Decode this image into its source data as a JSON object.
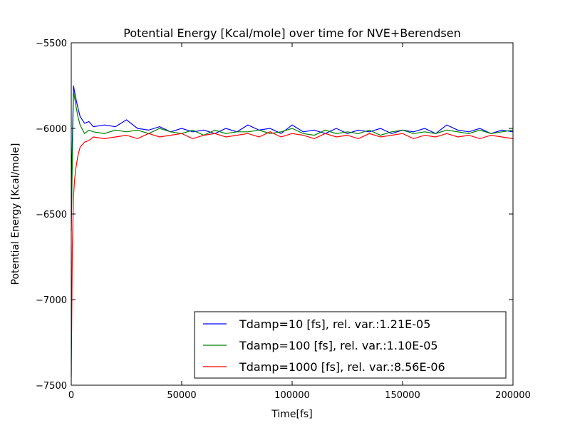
{
  "chart_data": {
    "type": "line",
    "title": "Potential Energy [Kcal/mole] over time for NVE+Berendsen",
    "xlabel": "Time[fs]",
    "ylabel": "Potential Energy [Kcal/mole]",
    "xlim": [
      0,
      200000
    ],
    "ylim": [
      -7500,
      -5500
    ],
    "xticks": [
      0,
      50000,
      100000,
      150000,
      200000
    ],
    "yticks": [
      -7500,
      -7000,
      -6500,
      -6000,
      -5500
    ],
    "grid": false,
    "legend_position": "lower-right",
    "series": [
      {
        "name": "Tdamp=10 [fs], rel. var.:1.21E-05",
        "color": "#0000ff",
        "x": [
          0,
          1000,
          2000,
          3000,
          4000,
          6000,
          8000,
          10000,
          15000,
          20000,
          25000,
          30000,
          35000,
          40000,
          45000,
          50000,
          55000,
          60000,
          65000,
          70000,
          75000,
          80000,
          85000,
          90000,
          95000,
          100000,
          105000,
          110000,
          115000,
          120000,
          125000,
          130000,
          135000,
          140000,
          145000,
          150000,
          155000,
          160000,
          165000,
          170000,
          175000,
          180000,
          185000,
          190000,
          195000,
          200000
        ],
        "y": [
          -6400,
          -5750,
          -5820,
          -5880,
          -5930,
          -5970,
          -5960,
          -5990,
          -5980,
          -5990,
          -5950,
          -6000,
          -6010,
          -5990,
          -6020,
          -6000,
          -6020,
          -6010,
          -6030,
          -6000,
          -6020,
          -5980,
          -6010,
          -6000,
          -6030,
          -5980,
          -6020,
          -6010,
          -6030,
          -6000,
          -6030,
          -6010,
          -6020,
          -6000,
          -6030,
          -6010,
          -6020,
          -6000,
          -6030,
          -5980,
          -6010,
          -6020,
          -6000,
          -6030,
          -6010,
          -6020
        ]
      },
      {
        "name": "Tdamp=100 [fs], rel. var.:1.10E-05",
        "color": "#008000",
        "x": [
          0,
          1000,
          2000,
          3000,
          4000,
          6000,
          8000,
          10000,
          15000,
          20000,
          25000,
          30000,
          35000,
          40000,
          45000,
          50000,
          55000,
          60000,
          65000,
          70000,
          75000,
          80000,
          85000,
          90000,
          95000,
          100000,
          105000,
          110000,
          115000,
          120000,
          125000,
          130000,
          135000,
          140000,
          145000,
          150000,
          155000,
          160000,
          165000,
          170000,
          175000,
          180000,
          185000,
          190000,
          195000,
          200000
        ],
        "y": [
          -6600,
          -5780,
          -5860,
          -5930,
          -5980,
          -6030,
          -6010,
          -6020,
          -6030,
          -6010,
          -6020,
          -6010,
          -6030,
          -6000,
          -6020,
          -6030,
          -6010,
          -6040,
          -6010,
          -6030,
          -6020,
          -6020,
          -6010,
          -6030,
          -6020,
          -6000,
          -6030,
          -6040,
          -6010,
          -6030,
          -6020,
          -6030,
          -6010,
          -6040,
          -6020,
          -6010,
          -6030,
          -6020,
          -6030,
          -6010,
          -6020,
          -6030,
          -6010,
          -6030,
          -6020,
          -6010
        ]
      },
      {
        "name": "Tdamp=1000 [fs], rel. var.:8.56E-06",
        "color": "#ff0000",
        "x": [
          0,
          500,
          1000,
          1500,
          2000,
          3000,
          4000,
          6000,
          8000,
          10000,
          15000,
          20000,
          25000,
          30000,
          35000,
          40000,
          45000,
          50000,
          55000,
          60000,
          65000,
          70000,
          75000,
          80000,
          85000,
          90000,
          95000,
          100000,
          105000,
          110000,
          115000,
          120000,
          125000,
          130000,
          135000,
          140000,
          145000,
          150000,
          155000,
          160000,
          165000,
          170000,
          175000,
          180000,
          185000,
          190000,
          195000,
          200000
        ],
        "y": [
          -7450,
          -6700,
          -6400,
          -6300,
          -6240,
          -6160,
          -6110,
          -6080,
          -6070,
          -6050,
          -6060,
          -6050,
          -6040,
          -6060,
          -6030,
          -6050,
          -6040,
          -6030,
          -6060,
          -6040,
          -6030,
          -6050,
          -6040,
          -6030,
          -6050,
          -6020,
          -6050,
          -6030,
          -6040,
          -6060,
          -6030,
          -6050,
          -6040,
          -6060,
          -6030,
          -6050,
          -6040,
          -6030,
          -6060,
          -6040,
          -6050,
          -6030,
          -6050,
          -6040,
          -6060,
          -6040,
          -6050,
          -6060
        ]
      }
    ]
  }
}
